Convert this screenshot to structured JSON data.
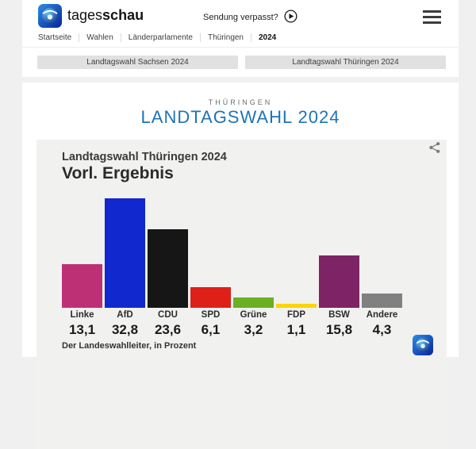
{
  "page": {
    "background": "#f0f0f0",
    "card_background": "#ffffff"
  },
  "header": {
    "brand_regular": "tages",
    "brand_bold": "schau",
    "watch_link": "Sendung verpasst?",
    "icons": [
      "tagesschau-globe-logo",
      "play-icon",
      "hamburger-menu-icon"
    ]
  },
  "breadcrumb": {
    "items": [
      "Startseite",
      "Wahlen",
      "Länderparlamente",
      "Thüringen",
      "2024"
    ],
    "current": "2024"
  },
  "tabs": [
    {
      "label": "Landtagswahl Sachsen 2024"
    },
    {
      "label": "Landtagswahl Thüringen 2024"
    }
  ],
  "main": {
    "kicker": "THÜRINGEN",
    "title": "LANDTAGSWAHL 2024",
    "title_color": "#1e73b8"
  },
  "chart": {
    "title": "Landtagswahl Thüringen 2024",
    "subtitle": "Vorl. Ergebnis",
    "source": "Der Landeswahlleiter, in Prozent",
    "share_icon": "share-icon",
    "watermark_icon": "tagesschau-globe-logo"
  },
  "chart_data": {
    "type": "bar",
    "title": "Landtagswahl Thüringen 2024",
    "subtitle": "Vorl. Ergebnis",
    "categories": [
      "Linke",
      "AfD",
      "CDU",
      "SPD",
      "Grüne",
      "FDP",
      "BSW",
      "Andere"
    ],
    "values": [
      13.1,
      32.8,
      23.6,
      6.1,
      3.2,
      1.1,
      15.8,
      4.3
    ],
    "display_values": [
      "13,1",
      "32,8",
      "23,6",
      "6,1",
      "3,2",
      "1,1",
      "15,8",
      "4,3"
    ],
    "colors": [
      "#be3075",
      "#1028cd",
      "#161617",
      "#df2019",
      "#6ab023",
      "#ffd400",
      "#7e2365",
      "#808080"
    ],
    "unit": "Prozent",
    "ylim": [
      0,
      35
    ],
    "grid": false,
    "legend": "none",
    "source": "Der Landeswahlleiter, in Prozent"
  }
}
